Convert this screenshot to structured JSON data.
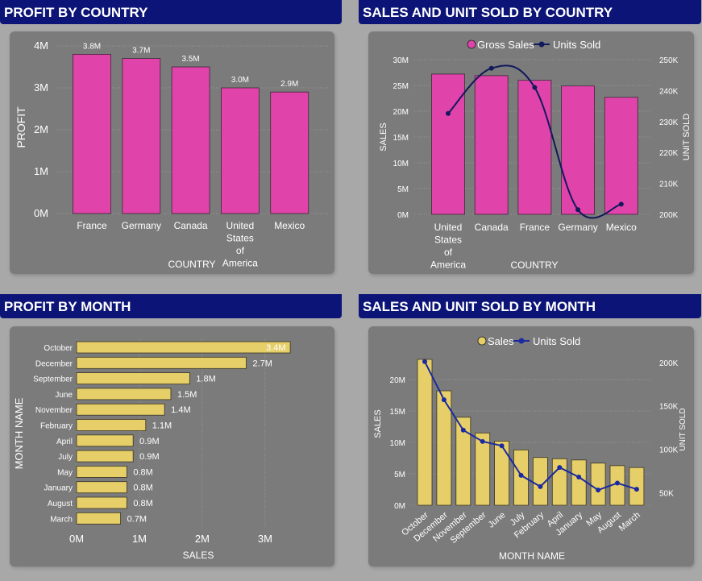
{
  "titles": {
    "profit_country": "PROFIT BY COUNTRY",
    "sales_country": "SALES AND UNIT SOLD BY COUNTRY",
    "profit_month": "PROFIT BY MONTH",
    "sales_month": "SALES AND UNIT SOLD BY MONTH"
  },
  "colors": {
    "header_bg": "#0c1577",
    "card_bg": "#7b7b7b",
    "pink_bar": "#e043aa",
    "yellow_bar": "#e6cf69",
    "navy_line": "#111a5c",
    "blue_line": "#1b2aa0"
  },
  "chart_data": [
    {
      "id": "profit_by_country",
      "type": "bar",
      "categories": [
        "France",
        "Germany",
        "Canada",
        "United States of America",
        "Mexico"
      ],
      "values": [
        3.8,
        3.7,
        3.5,
        3.0,
        2.9
      ],
      "data_labels": [
        "3.8M",
        "3.7M",
        "3.5M",
        "3.0M",
        "2.9M"
      ],
      "xlabel": "COUNTRY",
      "ylabel": "PROFIT",
      "yticks": [
        "0M",
        "1M",
        "2M",
        "3M",
        "4M"
      ],
      "ylim": [
        0,
        4
      ],
      "unit": "M",
      "grid": true
    },
    {
      "id": "sales_units_by_country",
      "type": "bar",
      "categories": [
        "United States of America",
        "Canada",
        "France",
        "Germany",
        "Mexico"
      ],
      "series": [
        {
          "name": "Gross Sales",
          "type": "bar",
          "axis": "left",
          "values": [
            27.2,
            26.9,
            26.0,
            24.9,
            22.7
          ]
        },
        {
          "name": "Units Sold",
          "type": "line",
          "axis": "right",
          "values": [
            232600,
            247200,
            241000,
            201500,
            203300
          ]
        }
      ],
      "xlabel": "COUNTRY",
      "ylabel": "SALES",
      "y2label": "UNIT SOLD",
      "yticks": [
        "0M",
        "5M",
        "10M",
        "15M",
        "20M",
        "25M",
        "30M"
      ],
      "ylim": [
        0,
        30
      ],
      "y2ticks": [
        "200K",
        "210K",
        "220K",
        "230K",
        "240K",
        "250K"
      ],
      "y2lim": [
        200000,
        250000
      ],
      "legend": "top-center",
      "grid": true
    },
    {
      "id": "profit_by_month",
      "type": "bar",
      "orientation": "horizontal",
      "categories": [
        "October",
        "December",
        "September",
        "June",
        "November",
        "February",
        "April",
        "July",
        "May",
        "January",
        "August",
        "March"
      ],
      "values": [
        3.4,
        2.7,
        1.8,
        1.5,
        1.4,
        1.1,
        0.9,
        0.9,
        0.8,
        0.8,
        0.8,
        0.7
      ],
      "data_labels": [
        "3.4M",
        "2.7M",
        "1.8M",
        "1.5M",
        "1.4M",
        "1.1M",
        "0.9M",
        "0.9M",
        "0.8M",
        "0.8M",
        "0.8M",
        "0.7M"
      ],
      "xlabel": "SALES",
      "ylabel": "MONTH NAME",
      "xticks": [
        "0M",
        "1M",
        "2M",
        "3M"
      ],
      "xlim": [
        0,
        3.45
      ],
      "grid": true
    },
    {
      "id": "sales_units_by_month",
      "type": "bar",
      "categories": [
        "October",
        "December",
        "November",
        "September",
        "June",
        "July",
        "February",
        "April",
        "January",
        "May",
        "August",
        "March"
      ],
      "series": [
        {
          "name": "Sales",
          "type": "bar",
          "axis": "left",
          "values": [
            23.2,
            18.2,
            14.0,
            11.5,
            10.2,
            8.8,
            7.6,
            7.4,
            7.2,
            6.7,
            6.3,
            6.0
          ]
        },
        {
          "name": "Units Sold",
          "type": "line",
          "axis": "right",
          "values": [
            201000,
            157000,
            122000,
            109000,
            104000,
            70000,
            57000,
            79000,
            68000,
            53000,
            61000,
            54000
          ]
        }
      ],
      "xlabel": "MONTH NAME",
      "ylabel": "SALES",
      "y2label": "UNIT SOLD",
      "yticks": [
        "0M",
        "5M",
        "10M",
        "15M",
        "20M"
      ],
      "ylim": [
        0,
        23.2
      ],
      "y2ticks": [
        "50K",
        "100K",
        "150K",
        "200K"
      ],
      "y2lim": [
        35500,
        203500
      ],
      "legend": "top-center",
      "grid": true
    }
  ]
}
